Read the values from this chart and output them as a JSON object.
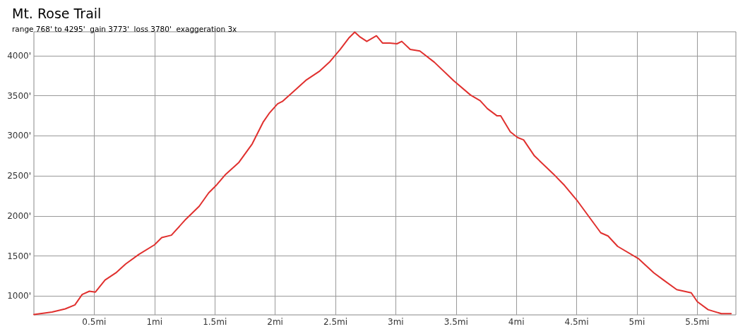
{
  "chart_data": {
    "type": "line",
    "title": "Mt. Rose Trail",
    "subtitle": "range 768' to 4295'  gain 3773'  loss 3780'  exaggeration 3x",
    "x": [
      0,
      0.15,
      0.26,
      0.34,
      0.4,
      0.46,
      0.51,
      0.59,
      0.68,
      0.76,
      0.87,
      1.0,
      1.06,
      1.14,
      1.26,
      1.37,
      1.45,
      1.51,
      1.59,
      1.7,
      1.81,
      1.9,
      1.95,
      2.02,
      2.06,
      2.15,
      2.26,
      2.37,
      2.45,
      2.54,
      2.61,
      2.66,
      2.7,
      2.76,
      2.84,
      2.89,
      2.95,
      3.01,
      3.05,
      3.12,
      3.2,
      3.32,
      3.48,
      3.62,
      3.7,
      3.76,
      3.84,
      3.87,
      3.95,
      4.01,
      4.06,
      4.15,
      4.31,
      4.4,
      4.51,
      4.7,
      4.76,
      4.84,
      5.01,
      5.14,
      5.22,
      5.33,
      5.45,
      5.5,
      5.59,
      5.7,
      5.78
    ],
    "series": [
      {
        "color": "#e0302e",
        "values": [
          770,
          800,
          840,
          890,
          1020,
          1060,
          1050,
          1200,
          1290,
          1400,
          1520,
          1640,
          1730,
          1760,
          1960,
          2120,
          2290,
          2380,
          2520,
          2670,
          2900,
          3170,
          3280,
          3400,
          3430,
          3550,
          3700,
          3810,
          3920,
          4080,
          4220,
          4295,
          4240,
          4180,
          4250,
          4160,
          4160,
          4150,
          4180,
          4080,
          4060,
          3920,
          3690,
          3510,
          3440,
          3340,
          3250,
          3250,
          3050,
          2980,
          2950,
          2750,
          2520,
          2380,
          2180,
          1790,
          1750,
          1620,
          1470,
          1290,
          1200,
          1080,
          1040,
          930,
          830,
          780,
          780
        ]
      }
    ],
    "xlim": [
      0,
      5.82
    ],
    "xticks": [
      {
        "value": 0.5,
        "label": "0.5mi"
      },
      {
        "value": 1,
        "label": "1mi"
      },
      {
        "value": 1.5,
        "label": "1.5mi"
      },
      {
        "value": 2,
        "label": "2mi"
      },
      {
        "value": 2.5,
        "label": "2.5mi"
      },
      {
        "value": 3,
        "label": "3mi"
      },
      {
        "value": 3.5,
        "label": "3.5mi"
      },
      {
        "value": 4,
        "label": "4mi"
      },
      {
        "value": 4.5,
        "label": "4.5mi"
      },
      {
        "value": 5,
        "label": "5mi"
      },
      {
        "value": 5.5,
        "label": "5.5mi"
      }
    ],
    "ylim": [
      765,
      4300
    ],
    "yticks": [
      {
        "value": 1000,
        "label": "1000'"
      },
      {
        "value": 1500,
        "label": "1500'"
      },
      {
        "value": 2000,
        "label": "2000'"
      },
      {
        "value": 2500,
        "label": "2500'"
      },
      {
        "value": 3000,
        "label": "3000'"
      },
      {
        "value": 3500,
        "label": "3500'"
      },
      {
        "value": 4000,
        "label": "4000'"
      }
    ],
    "grid": true,
    "marker": "none",
    "line_style": "solid"
  }
}
